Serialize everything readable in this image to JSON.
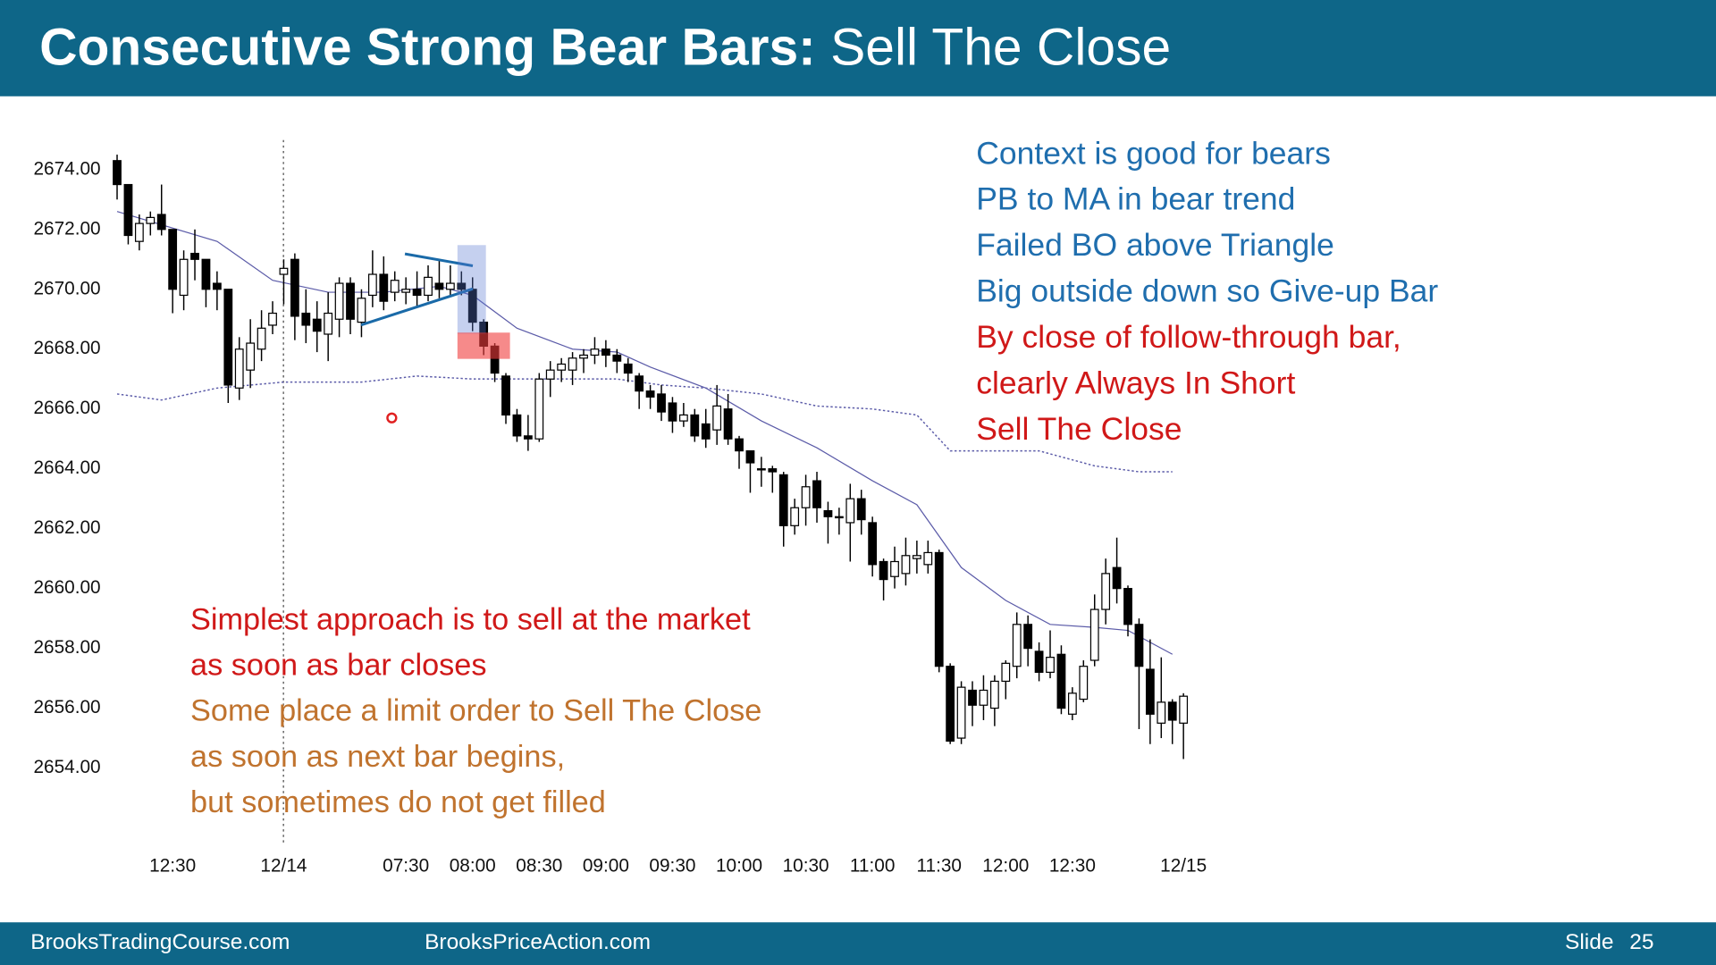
{
  "header": {
    "title_bold": "Consecutive Strong Bear Bars:",
    "title_rest": "Sell The Close"
  },
  "footer": {
    "left": "BrooksTradingCourse.com",
    "middle": "BrooksPriceAction.com",
    "slide_label": "Slide",
    "slide_number": "25"
  },
  "chart_data": {
    "type": "candlestick",
    "x": [
      null,
      null,
      null,
      null,
      null,
      "12:30",
      null,
      null,
      null,
      null,
      null,
      null,
      null,
      null,
      null,
      "12/14",
      null,
      null,
      null,
      null,
      null,
      null,
      null,
      null,
      null,
      null,
      "07:30",
      null,
      null,
      null,
      null,
      null,
      "08:00",
      null,
      null,
      null,
      null,
      null,
      "08:30",
      null,
      null,
      null,
      null,
      null,
      "09:00",
      null,
      null,
      null,
      null,
      null,
      "09:30",
      null,
      null,
      null,
      null,
      null,
      "10:00",
      null,
      null,
      null,
      null,
      null,
      "10:30",
      null,
      null,
      null,
      null,
      null,
      "11:00",
      null,
      null,
      null,
      null,
      null,
      "11:30",
      null,
      null,
      null,
      null,
      null,
      "12:00",
      null,
      null,
      null,
      null,
      null,
      "12:30",
      null,
      null,
      null,
      null,
      null,
      null,
      null,
      null,
      null,
      "12/15"
    ],
    "open": [
      2674.3,
      2673.5,
      2671.6,
      2672.2,
      2672.5,
      2672.0,
      2669.8,
      2671.2,
      2671.0,
      2670.2,
      2670.0,
      2666.7,
      2667.3,
      2668.0,
      2668.8,
      2670.5,
      2671.0,
      2669.2,
      2669.0,
      2668.5,
      2669.0,
      2670.2,
      2668.9,
      2669.8,
      2670.5,
      2669.9,
      2669.9,
      2670.0,
      2669.8,
      2670.2,
      2670.0,
      2670.2,
      2670.0,
      2668.9,
      2668.1,
      2667.1,
      2665.8,
      2665.1,
      2665.0,
      2667.0,
      2667.3,
      2667.3,
      2667.7,
      2667.8,
      2668.0,
      2667.8,
      2667.5,
      2667.1,
      2666.6,
      2666.5,
      2666.2,
      2665.6,
      2665.8,
      2665.5,
      2665.3,
      2666.0,
      2665.0,
      2664.6,
      2664.0,
      2664.0,
      2663.8,
      2662.1,
      2662.7,
      2663.6,
      2662.6,
      2662.4,
      2662.2,
      2663.0,
      2662.2,
      2660.9,
      2660.4,
      2660.5,
      2661.0,
      2660.8,
      2661.2,
      2657.4,
      2655.0,
      2656.6,
      2656.1,
      2656.0,
      2656.9,
      2657.4,
      2658.8,
      2657.9,
      2657.2,
      2657.8,
      2655.8,
      2656.3,
      2657.6,
      2659.3,
      2660.7,
      2660.0,
      2658.8,
      2657.3,
      2655.5,
      2656.2,
      2655.5
    ],
    "high": [
      2674.5,
      2673.5,
      2672.5,
      2672.6,
      2673.5,
      2672.0,
      2671.3,
      2672.0,
      2671.0,
      2670.6,
      2670.0,
      2668.4,
      2669.0,
      2669.3,
      2669.6,
      2671.0,
      2671.2,
      2670.0,
      2669.6,
      2669.9,
      2670.4,
      2670.4,
      2670.0,
      2671.3,
      2671.1,
      2670.6,
      2670.4,
      2670.6,
      2670.8,
      2671.0,
      2670.8,
      2670.6,
      2670.4,
      2669.0,
      2668.2,
      2667.2,
      2666.0,
      2665.8,
      2667.2,
      2667.6,
      2667.7,
      2667.9,
      2668.0,
      2668.4,
      2668.3,
      2668.0,
      2667.7,
      2667.2,
      2666.8,
      2666.8,
      2666.4,
      2666.2,
      2666.0,
      2666.0,
      2666.8,
      2666.5,
      2665.1,
      2664.6,
      2664.4,
      2664.1,
      2663.9,
      2663.0,
      2663.8,
      2663.9,
      2662.9,
      2662.7,
      2663.5,
      2663.3,
      2662.4,
      2661.0,
      2661.4,
      2661.7,
      2661.6,
      2661.6,
      2661.3,
      2657.5,
      2656.9,
      2656.9,
      2657.1,
      2657.1,
      2657.6,
      2659.2,
      2659.1,
      2658.2,
      2658.6,
      2658.1,
      2656.7,
      2657.6,
      2659.8,
      2661.0,
      2661.7,
      2660.1,
      2659.0,
      2658.3,
      2657.7,
      2656.3,
      2656.5
    ],
    "low": [
      2673.0,
      2671.5,
      2671.3,
      2671.8,
      2671.8,
      2669.2,
      2669.3,
      2670.3,
      2669.4,
      2669.3,
      2666.2,
      2666.3,
      2666.7,
      2667.6,
      2668.5,
      2669.5,
      2668.3,
      2668.2,
      2667.9,
      2667.6,
      2668.4,
      2668.5,
      2668.4,
      2669.4,
      2669.3,
      2669.6,
      2669.5,
      2669.4,
      2669.6,
      2669.7,
      2669.8,
      2669.8,
      2668.6,
      2667.8,
      2666.9,
      2665.5,
      2664.9,
      2664.6,
      2664.9,
      2666.4,
      2666.9,
      2666.8,
      2667.2,
      2667.5,
      2667.4,
      2667.2,
      2666.9,
      2666.0,
      2666.0,
      2665.6,
      2665.2,
      2665.4,
      2664.9,
      2664.7,
      2664.8,
      2664.8,
      2664.0,
      2663.2,
      2663.4,
      2663.2,
      2661.4,
      2661.8,
      2662.1,
      2662.2,
      2661.5,
      2661.8,
      2660.9,
      2661.8,
      2660.4,
      2659.6,
      2660.0,
      2660.1,
      2660.5,
      2660.5,
      2657.2,
      2654.8,
      2654.8,
      2655.4,
      2655.6,
      2655.4,
      2656.3,
      2657.0,
      2657.4,
      2656.9,
      2657.0,
      2655.8,
      2655.6,
      2656.2,
      2657.4,
      2658.8,
      2659.5,
      2658.4,
      2655.3,
      2654.8,
      2655.0,
      2654.8,
      2654.3
    ],
    "close": [
      2673.5,
      2671.8,
      2672.2,
      2672.4,
      2672.0,
      2670.0,
      2671.0,
      2671.0,
      2670.0,
      2670.0,
      2666.8,
      2668.0,
      2668.2,
      2668.7,
      2669.2,
      2670.7,
      2669.1,
      2668.8,
      2668.6,
      2669.2,
      2670.2,
      2669.0,
      2669.7,
      2670.5,
      2669.6,
      2670.3,
      2670.0,
      2669.8,
      2670.4,
      2670.0,
      2670.2,
      2670.0,
      2668.9,
      2668.1,
      2667.2,
      2665.8,
      2665.1,
      2665.0,
      2667.0,
      2667.3,
      2667.5,
      2667.7,
      2667.8,
      2668.0,
      2667.8,
      2667.6,
      2667.2,
      2666.6,
      2666.4,
      2665.9,
      2665.6,
      2665.8,
      2665.1,
      2665.0,
      2666.1,
      2665.0,
      2664.6,
      2664.2,
      2664.0,
      2663.9,
      2662.1,
      2662.7,
      2663.4,
      2662.7,
      2662.4,
      2662.4,
      2663.0,
      2662.3,
      2660.8,
      2660.3,
      2660.9,
      2661.1,
      2661.1,
      2661.2,
      2657.4,
      2654.9,
      2656.7,
      2656.1,
      2656.6,
      2656.9,
      2657.5,
      2658.8,
      2658.0,
      2657.2,
      2657.7,
      2656.0,
      2656.5,
      2657.4,
      2659.3,
      2660.5,
      2660.0,
      2658.8,
      2657.4,
      2655.8,
      2656.2,
      2655.6,
      2656.4
    ],
    "up_color": "#ffffff",
    "down_color": "#000000",
    "lines": [
      {
        "color": "#5b5ba8",
        "style": "solid",
        "x": [
          0,
          9,
          14,
          19,
          24,
          29,
          32,
          36,
          41,
          45,
          48,
          53,
          58,
          63,
          68,
          72,
          76,
          80,
          84,
          88,
          91,
          95
        ],
        "values": [
          2672.6,
          2671.6,
          2670.3,
          2669.9,
          2669.9,
          2670.1,
          2669.8,
          2668.7,
          2668.0,
          2667.9,
          2667.4,
          2666.7,
          2665.6,
          2664.7,
          2663.6,
          2662.8,
          2660.7,
          2659.6,
          2658.8,
          2658.7,
          2658.6,
          2657.8
        ]
      },
      {
        "color": "#5b5ba8",
        "style": "dotted",
        "x": [
          0,
          4,
          9,
          15,
          22,
          27,
          32,
          39,
          45,
          49,
          53,
          58,
          63,
          68,
          72,
          75,
          83,
          88,
          92,
          95
        ],
        "values": [
          2666.5,
          2666.3,
          2666.7,
          2666.9,
          2666.9,
          2667.1,
          2667.0,
          2667.0,
          2667.0,
          2666.8,
          2666.7,
          2666.5,
          2666.1,
          2666.0,
          2665.8,
          2664.6,
          2664.6,
          2664.1,
          2663.9,
          2663.9
        ]
      }
    ],
    "ylim": [
      2651.6,
      2674.9
    ],
    "yticks": [
      {
        "value": 2674,
        "label": "2674.00"
      },
      {
        "value": 2672,
        "label": "2672.00"
      },
      {
        "value": 2670,
        "label": "2670.00"
      },
      {
        "value": 2668,
        "label": "2668.00"
      },
      {
        "value": 2666,
        "label": "2666.00"
      },
      {
        "value": 2664,
        "label": "2664.00"
      },
      {
        "value": 2662,
        "label": "2662.00"
      },
      {
        "value": 2660,
        "label": "2660.00"
      },
      {
        "value": 2658,
        "label": "2658.00"
      },
      {
        "value": 2656,
        "label": "2656.00"
      },
      {
        "value": 2654,
        "label": "2654.00"
      }
    ],
    "grid": false,
    "notes_right": [
      {
        "text": "Context is good for bears",
        "color": "#1f6eae"
      },
      {
        "text": "PB to MA in bear trend",
        "color": "#1f6eae"
      },
      {
        "text": "Failed BO above Triangle",
        "color": "#1f6eae"
      },
      {
        "text": "Big outside down so Give-up Bar",
        "color": "#1f6eae"
      },
      {
        "text": "By close of follow-through bar,",
        "color": "#d01818"
      },
      {
        "text": "clearly Always In Short",
        "color": "#d01818"
      },
      {
        "text": "Sell The Close",
        "color": "#d01818"
      }
    ],
    "notes_bottom": [
      {
        "text": "Simplest approach is to sell at the market",
        "color": "#d01818"
      },
      {
        "text": "as soon as bar closes",
        "color": "#d01818"
      },
      {
        "text": "Some place a limit order to Sell The Close",
        "color": "#c0732e"
      },
      {
        "text": "as soon as next bar begins,",
        "color": "#c0732e"
      },
      {
        "text": "but sometimes do not get filled",
        "color": "#c0732e"
      }
    ]
  }
}
